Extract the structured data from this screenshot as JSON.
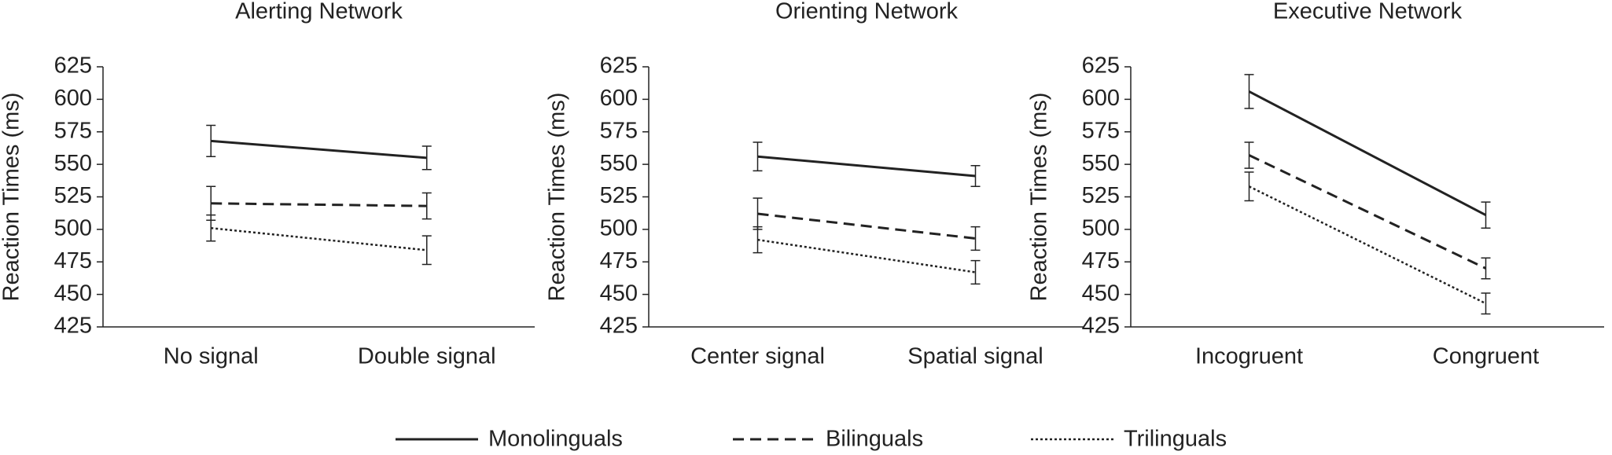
{
  "chart_data": [
    {
      "type": "line",
      "title": "Alerting Network",
      "y_label": "Reaction Times (ms)",
      "categories": [
        "No signal",
        "Double signal"
      ],
      "series": [
        {
          "values": [
            568,
            555
          ],
          "errors": [
            12,
            9
          ]
        },
        {
          "values": [
            520,
            518
          ],
          "errors": [
            13,
            10
          ]
        },
        {
          "values": [
            501,
            484
          ],
          "errors": [
            10,
            11
          ]
        }
      ],
      "ylim": [
        425,
        625
      ],
      "yticks": [
        425,
        450,
        475,
        500,
        525,
        550,
        575,
        600,
        625
      ]
    },
    {
      "type": "line",
      "title": "Orienting Network",
      "y_label": "Reaction Times (ms)",
      "categories": [
        "Center signal",
        "Spatial signal"
      ],
      "series": [
        {
          "values": [
            556,
            541
          ],
          "errors": [
            11,
            8
          ]
        },
        {
          "values": [
            512,
            493
          ],
          "errors": [
            12,
            9
          ]
        },
        {
          "values": [
            492,
            467
          ],
          "errors": [
            10,
            9
          ]
        }
      ],
      "ylim": [
        425,
        625
      ],
      "yticks": [
        425,
        450,
        475,
        500,
        525,
        550,
        575,
        600,
        625
      ]
    },
    {
      "type": "line",
      "title": "Executive Network",
      "y_label": "Reaction Times (ms)",
      "categories": [
        "Incogruent",
        "Congruent"
      ],
      "series": [
        {
          "values": [
            606,
            511
          ],
          "errors": [
            13,
            10
          ]
        },
        {
          "values": [
            557,
            470
          ],
          "errors": [
            10,
            8
          ]
        },
        {
          "values": [
            533,
            443
          ],
          "errors": [
            11,
            8
          ]
        }
      ],
      "ylim": [
        425,
        625
      ],
      "yticks": [
        425,
        450,
        475,
        500,
        525,
        550,
        575,
        600,
        625
      ]
    }
  ],
  "legend": [
    {
      "name": "Monolinguals",
      "dash": "solid",
      "color": "#222222"
    },
    {
      "name": "Bilinguals",
      "dash": "dashed",
      "color": "#222222"
    },
    {
      "name": "Trilinguals",
      "dash": "dotted",
      "color": "#222222"
    }
  ]
}
